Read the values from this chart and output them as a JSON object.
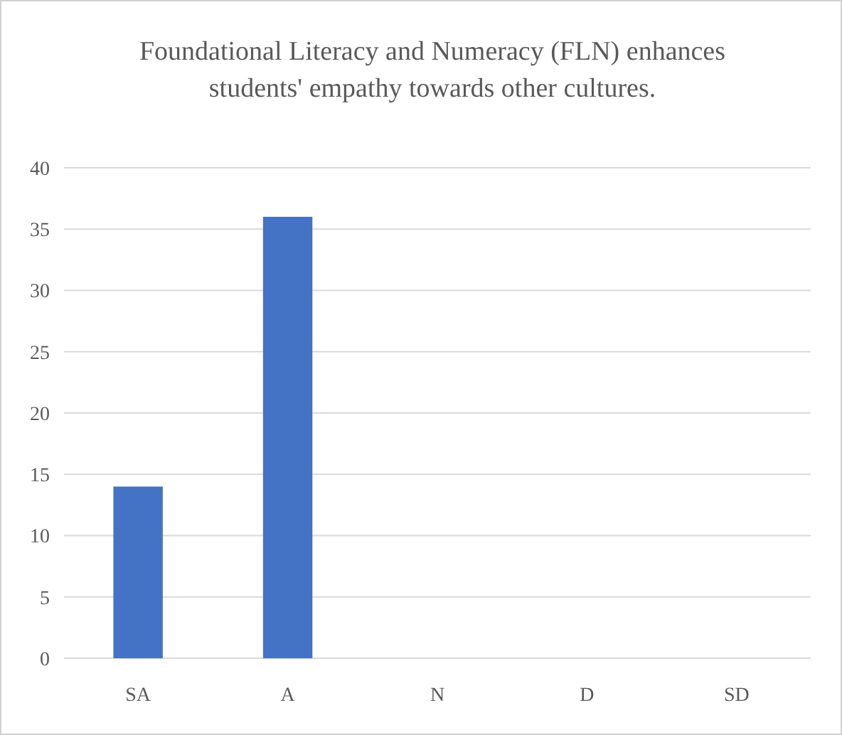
{
  "chart_data": {
    "type": "bar",
    "title": "Foundational Literacy  and Numeracy (FLN) enhances students' empathy towards other cultures.",
    "categories": [
      "SA",
      "A",
      "N",
      "D",
      "SD"
    ],
    "values": [
      14,
      36,
      0,
      0,
      0
    ],
    "color": "#4472c4",
    "ylim": [
      0,
      40
    ],
    "yticks": [
      0,
      5,
      10,
      15,
      20,
      25,
      30,
      35,
      40
    ],
    "grid": "y"
  }
}
